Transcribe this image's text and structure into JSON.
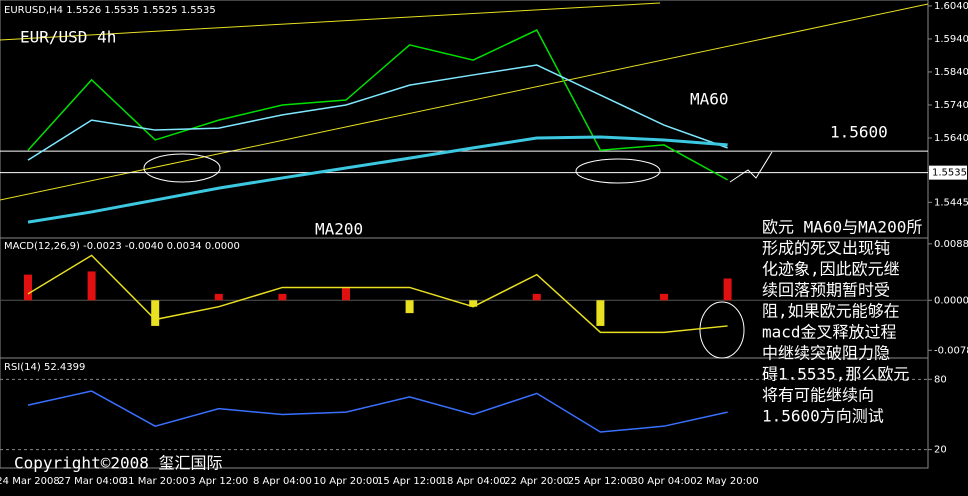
{
  "header": "EURUSD,H4  1.5526 1.5535 1.5525 1.5535",
  "chart_data": [
    {
      "type": "line",
      "title": "EUR/USD 4h",
      "categories": [
        "24 Mar 2008",
        "27 Mar 04:00",
        "31 Mar 20:00",
        "3 Apr 12:00",
        "8 Apr 04:00",
        "10 Apr 20:00",
        "15 Apr 12:00",
        "18 Apr 04:00",
        "22 Apr 20:00",
        "25 Apr 12:00",
        "30 Apr 04:00",
        "2 May 20:00"
      ],
      "ylim": [
        1.5337,
        1.6058
      ],
      "yticks": [
        {
          "value": 1.604,
          "label": "1.6040"
        },
        {
          "value": 1.594,
          "label": "1.5940"
        },
        {
          "value": 1.584,
          "label": "1.5840"
        },
        {
          "value": 1.574,
          "label": "1.5740"
        },
        {
          "value": 1.564,
          "label": "1.5640"
        },
        {
          "value": 1.5445,
          "label": "1.5445"
        }
      ],
      "price_label": {
        "value": 1.5535,
        "label": "1.5535"
      },
      "level": {
        "value": 1.56,
        "label": "1.5600"
      },
      "series": [
        {
          "color": "#00e000",
          "values": [
            1.5603,
            1.5816,
            1.5634,
            1.5694,
            1.574,
            1.5755,
            1.5922,
            1.5876,
            1.5967,
            1.5603,
            1.5619,
            1.5513
          ]
        },
        {
          "name": "MA60",
          "color": "#7fe8ff",
          "values": [
            1.5573,
            1.5694,
            1.5664,
            1.567,
            1.571,
            1.574,
            1.58,
            1.5831,
            1.5861,
            1.577,
            1.5679,
            1.561
          ]
        },
        {
          "name": "MA200",
          "color": "#3cc8e0",
          "values": [
            1.5385,
            1.5416,
            1.5452,
            1.5488,
            1.5519,
            1.5549,
            1.5579,
            1.561,
            1.564,
            1.5643,
            1.5634,
            1.5619
          ]
        }
      ]
    },
    {
      "type": "bar",
      "title": "MACD(12,26,9) -0.0023 -0.0040 0.0034 0.0000",
      "ylim": [
        -0.009,
        0.0094
      ],
      "yticks": [
        {
          "value": 0.0088,
          "label": "0.0088"
        },
        {
          "value": 0,
          "label": "0.0000"
        },
        {
          "value": -0.0078,
          "label": "-0.0078"
        }
      ],
      "positive_color": "#e01010",
      "negative_color": "#e8e020",
      "values": [
        0.004,
        0.0045,
        -0.004,
        0.001,
        0.001,
        0.002,
        -0.002,
        -0.001,
        0.001,
        -0.004,
        0.001,
        0.0034
      ],
      "line": {
        "color": "#e8e020",
        "values": [
          0.001,
          0.007,
          -0.003,
          -0.001,
          0.002,
          0.002,
          0.002,
          -0.001,
          0.004,
          -0.005,
          -0.005,
          -0.004
        ]
      }
    },
    {
      "type": "line",
      "title": "RSI(14) 52.4399",
      "ylim": [
        4.3,
        96.5
      ],
      "yticks": [
        80,
        20
      ],
      "series": [
        {
          "color": "#3a70ff",
          "values": [
            58,
            70,
            40,
            55,
            50,
            52,
            65,
            50,
            68,
            35,
            40,
            52
          ]
        }
      ]
    }
  ],
  "annotation": [
    "欧元 MA60与MA200所",
    "形成的死叉出现钝",
    "化迹象,因此欧元继",
    "续回落预期暂时受",
    "阻,如果欧元能够在",
    "macd金叉释放过程",
    "中继续突破阻力隐",
    "碍1.5535,那么欧元",
    "将有可能继续向",
    "1.5600方向测试"
  ],
  "copyright": "Copyright©2008 玺汇国际"
}
